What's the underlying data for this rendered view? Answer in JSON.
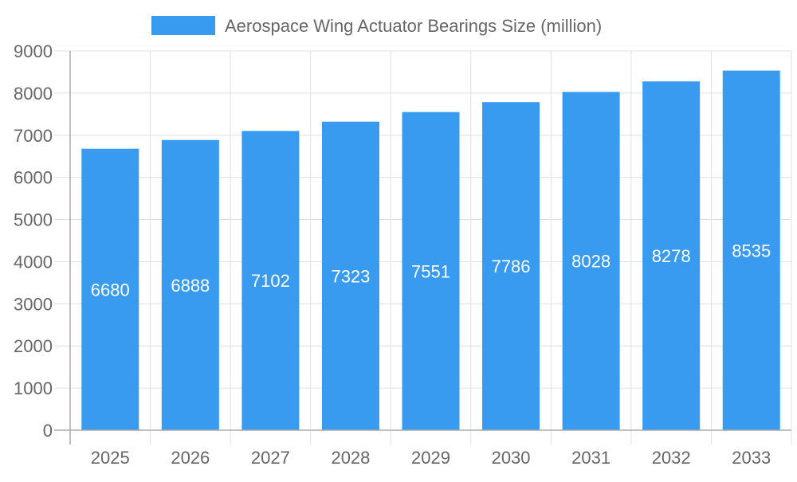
{
  "chart_data": {
    "type": "bar",
    "categories": [
      "2025",
      "2026",
      "2027",
      "2028",
      "2029",
      "2030",
      "2031",
      "2032",
      "2033"
    ],
    "series": [
      {
        "name": "Aerospace Wing Actuator Bearings Size (million)",
        "values": [
          6680,
          6888,
          7102,
          7323,
          7551,
          7786,
          8028,
          8278,
          8535
        ]
      }
    ],
    "yticks": [
      0,
      1000,
      2000,
      3000,
      4000,
      5000,
      6000,
      7000,
      8000,
      9000
    ],
    "ylim": [
      0,
      9000
    ],
    "grid": true,
    "legend": "top",
    "data_labels": true,
    "colors": {
      "bar": "#389bf0",
      "grid": "#e0e0e0",
      "axis": "#aaaaaa",
      "text": "#666666",
      "label": "#ffffff"
    }
  }
}
